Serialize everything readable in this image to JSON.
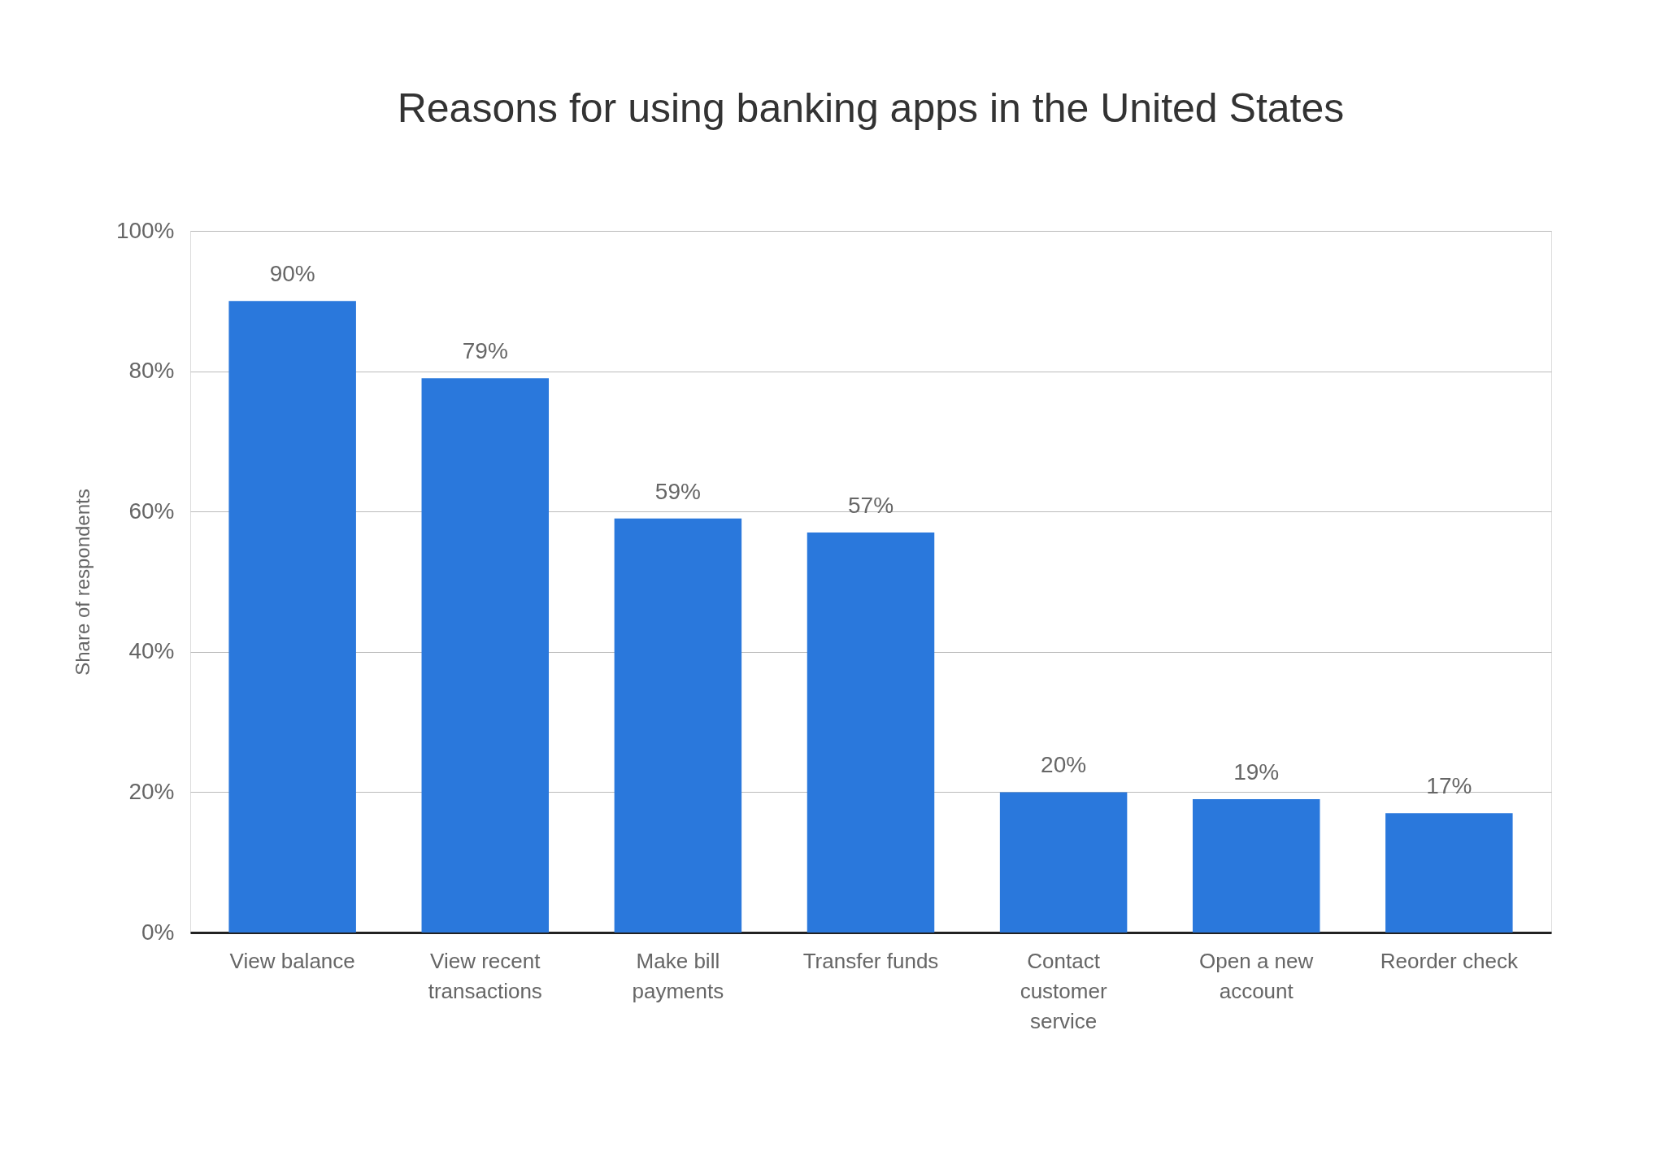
{
  "chart_data": {
    "type": "bar",
    "title": "Reasons for using banking apps in the United States",
    "ylabel": "Share of respondents",
    "categories": [
      "View balance",
      "View recent transactions",
      "Make bill payments",
      "Transfer funds",
      "Contact customer service",
      "Open a new account",
      "Reorder check"
    ],
    "values": [
      90,
      79,
      59,
      57,
      20,
      19,
      17
    ],
    "value_labels": [
      "90%",
      "79%",
      "59%",
      "57%",
      "20%",
      "19%",
      "17%"
    ],
    "color": "#2a78dc",
    "ylim": [
      0,
      100
    ],
    "yticks": [
      {
        "value": 0,
        "label": "0%"
      },
      {
        "value": 20,
        "label": "20%"
      },
      {
        "value": 40,
        "label": "40%"
      },
      {
        "value": 60,
        "label": "60%"
      },
      {
        "value": 80,
        "label": "80%"
      },
      {
        "value": 100,
        "label": "100%"
      }
    ],
    "grid": "y"
  }
}
